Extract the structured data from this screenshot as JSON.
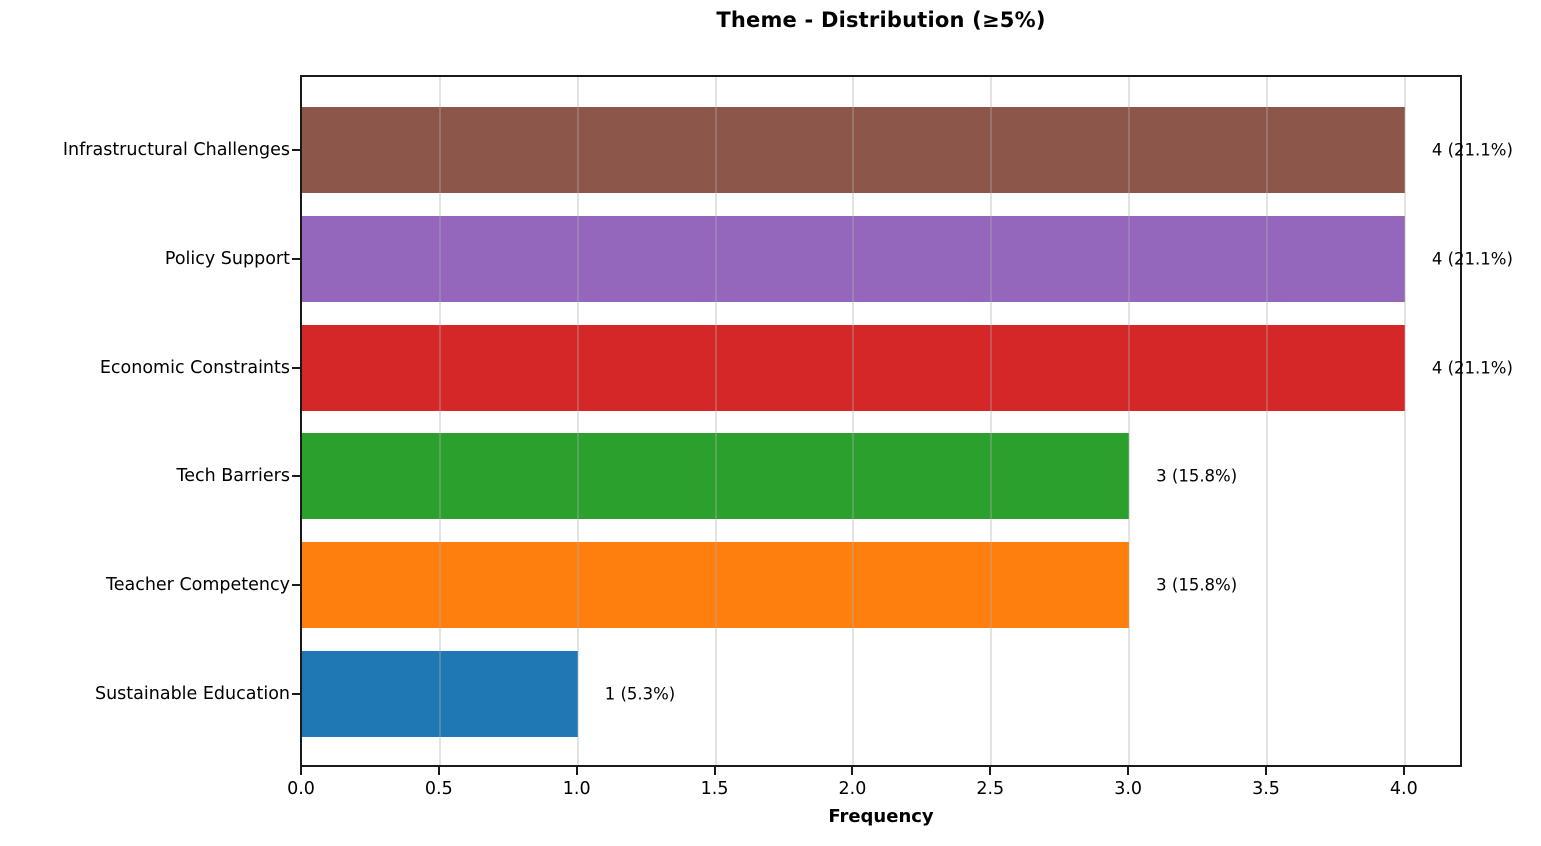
{
  "chart_data": {
    "type": "bar",
    "orientation": "horizontal",
    "title": "Theme - Distribution (≥5%)",
    "xlabel": "Frequency",
    "ylabel": "",
    "categories": [
      "Infrastructural Challenges",
      "Policy Support",
      "Economic Constraints",
      "Tech Barriers",
      "Teacher Competency",
      "Sustainable Education"
    ],
    "values": [
      4,
      4,
      4,
      3,
      3,
      1
    ],
    "bar_labels": [
      "4 (21.1%)",
      "4 (21.1%)",
      "4 (21.1%)",
      "3 (15.8%)",
      "3 (15.8%)",
      "1 (5.3%)"
    ],
    "bar_colors": [
      "#8c564b",
      "#9467bd",
      "#d62728",
      "#2ca02c",
      "#ff7f0e",
      "#1f77b4"
    ],
    "xlim": [
      0,
      4.2
    ],
    "xticks": [
      0.0,
      0.5,
      1.0,
      1.5,
      2.0,
      2.5,
      3.0,
      3.5,
      4.0
    ],
    "xtick_labels": [
      "0.0",
      "0.5",
      "1.0",
      "1.5",
      "2.0",
      "2.5",
      "3.0",
      "3.5",
      "4.0"
    ],
    "grid": true,
    "grid_axis": "x",
    "legend": "none",
    "colors": {
      "spine": "#1a1a1a",
      "gridline": "#b0b0b0",
      "background": "#ffffff",
      "text": "#000000"
    }
  }
}
